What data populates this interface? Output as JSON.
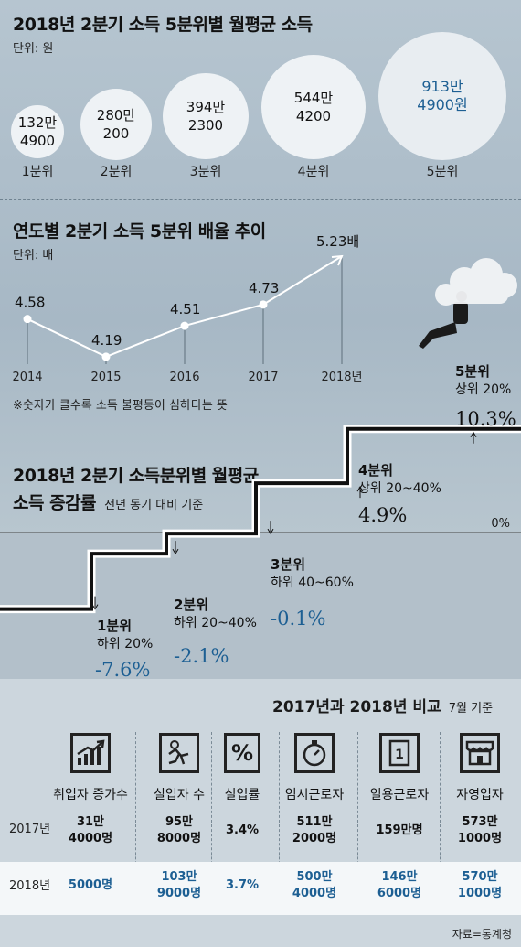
{
  "section1": {
    "title": "2018년 2분기 소득 5분위별 월평균 소득",
    "unit": "단위: 원",
    "bubbles": [
      {
        "quintile": "1분위",
        "line1": "132만",
        "line2": "4900"
      },
      {
        "quintile": "2분위",
        "line1": "280만",
        "line2": "200"
      },
      {
        "quintile": "3분위",
        "line1": "394만",
        "line2": "2300"
      },
      {
        "quintile": "4분위",
        "line1": "544만",
        "line2": "4200"
      },
      {
        "quintile": "5분위",
        "line1": "913만",
        "line2": "4900원"
      }
    ]
  },
  "chart_data": [
    {
      "type": "bar",
      "title": "2018년 2분기 소득 5분위별 월평균 소득",
      "unit": "단위: 원",
      "categories": [
        "1분위",
        "2분위",
        "3분위",
        "4분위",
        "5분위"
      ],
      "values": [
        1324900,
        2800200,
        3942300,
        5444200,
        9134900
      ]
    },
    {
      "type": "line",
      "title": "연도별 2분기 소득 5분위 배율 추이",
      "unit": "단위: 배",
      "x": [
        "2014",
        "2015",
        "2016",
        "2017",
        "2018년"
      ],
      "values": [
        4.58,
        4.19,
        4.51,
        4.73,
        5.23
      ],
      "labels": [
        "4.58",
        "4.19",
        "4.51",
        "4.73",
        "5.23배"
      ],
      "ylim": [
        4.0,
        5.4
      ],
      "note": "※숫자가 클수록 소득 불평등이 심하다는 뜻"
    },
    {
      "type": "bar",
      "title_line1": "2018년 2분기 소득분위별 월평균",
      "title_line2": "소득 증감률",
      "subtitle": "전년 동기 대비 기준",
      "zero_label": "0%",
      "categories": [
        "1분위",
        "2분위",
        "3분위",
        "4분위",
        "5분위"
      ],
      "ranges": [
        "하위 20%",
        "하위 20~40%",
        "하위 40~60%",
        "상위 20~40%",
        "상위 20%"
      ],
      "values": [
        -7.6,
        -2.1,
        -0.1,
        4.9,
        10.3
      ],
      "labels": [
        "-7.6%",
        "-2.1%",
        "-0.1%",
        "4.9%",
        "10.3%"
      ]
    }
  ],
  "compare": {
    "title": "2017년과 2018년 비교",
    "subtitle": "7월 기준",
    "columns": [
      {
        "head": "취업자 증가수",
        "icon": "growth-chart-icon",
        "y2017": [
          "31만",
          "4000명"
        ],
        "y2018": [
          "5000명",
          ""
        ]
      },
      {
        "head": "실업자 수",
        "icon": "running-person-icon",
        "y2017": [
          "95만",
          "8000명"
        ],
        "y2018": [
          "103만",
          "9000명"
        ]
      },
      {
        "head": "실업률",
        "icon": "percent-icon",
        "y2017": [
          "3.4%",
          ""
        ],
        "y2018": [
          "3.7%",
          ""
        ]
      },
      {
        "head": "임시근로자",
        "icon": "stopwatch-icon",
        "y2017": [
          "511만",
          "2000명"
        ],
        "y2018": [
          "500만",
          "4000명"
        ]
      },
      {
        "head": "일용근로자",
        "icon": "calendar-day-icon",
        "y2017": [
          "159만명",
          ""
        ],
        "y2018": [
          "146만",
          "6000명"
        ]
      },
      {
        "head": "자영업자",
        "icon": "storefront-icon",
        "y2017": [
          "573만",
          "1000명"
        ],
        "y2018": [
          "570만",
          "1000명"
        ]
      }
    ],
    "row_labels": [
      "2017년",
      "2018년"
    ],
    "source": "자료=통계청"
  }
}
